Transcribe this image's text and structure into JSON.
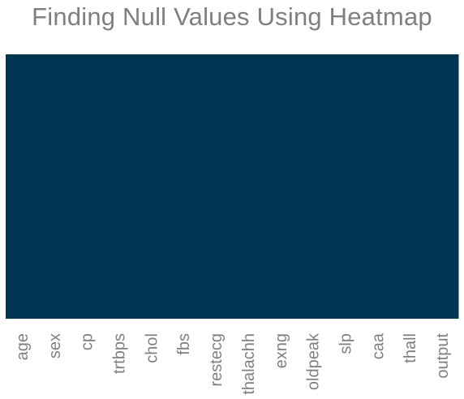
{
  "chart_data": {
    "type": "heatmap",
    "title": "Finding Null Values Using Heatmap",
    "xlabel": "",
    "ylabel": "",
    "categories": [
      "age",
      "sex",
      "cp",
      "trtbps",
      "chol",
      "fbs",
      "restecg",
      "thalachh",
      "exng",
      "oldpeak",
      "slp",
      "caa",
      "thall",
      "output"
    ],
    "values": [
      0,
      0,
      0,
      0,
      0,
      0,
      0,
      0,
      0,
      0,
      0,
      0,
      0,
      0
    ],
    "colorbar": false,
    "yticklabels": false
  },
  "colors": {
    "cell": "#003552",
    "text": "#7f7f7f",
    "background": "#ffffff"
  }
}
